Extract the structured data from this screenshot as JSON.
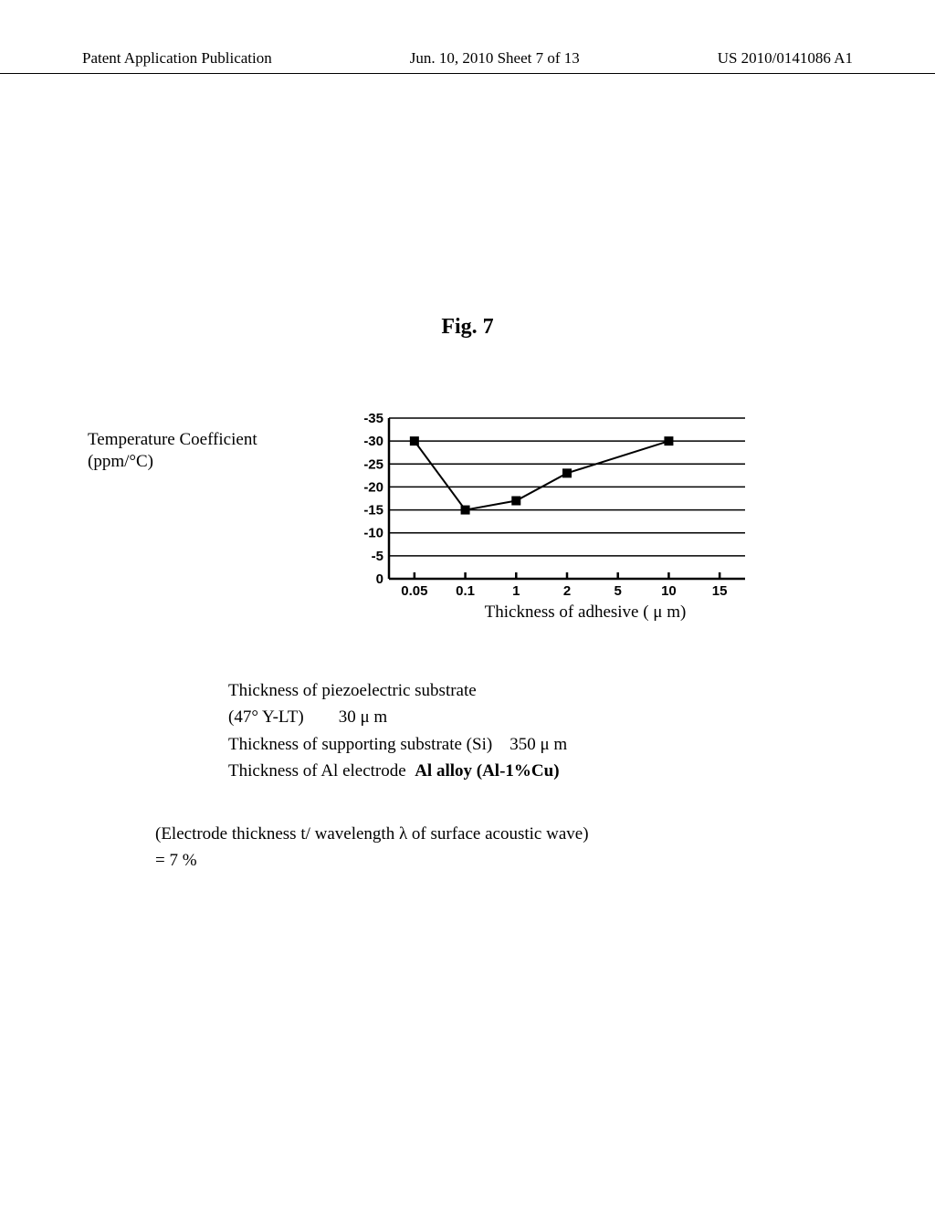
{
  "header": {
    "left": "Patent Application Publication",
    "mid": "Jun. 10, 2010  Sheet 7 of 13",
    "right": "US 2010/0141086 A1"
  },
  "figure": {
    "title": "Fig. 7",
    "ylabel_line1": "Temperature Coefficient",
    "ylabel_line2": "(ppm/°C)",
    "xlabel": "Thickness of adhesive ( μ m)",
    "chart": {
      "type": "line",
      "x_categories": [
        "0.05",
        "0.1",
        "1",
        "2",
        "5",
        "10",
        "15"
      ],
      "y_ticks": [
        0,
        -5,
        -10,
        -15,
        -20,
        -25,
        -30,
        -35
      ],
      "ylim": [
        0,
        -35
      ],
      "values": [
        -30,
        -15,
        -17,
        -23,
        -30
      ],
      "value_x_indices": [
        0,
        1,
        2,
        3,
        5
      ],
      "marker": "square",
      "marker_size": 10,
      "marker_color": "#000000",
      "line_color": "#000000",
      "line_width": 2,
      "grid_color": "#000000",
      "grid_width": 1.5,
      "axis_color": "#000000",
      "axis_width": 2.5,
      "background_color": "#ffffff",
      "tick_fontsize": 15,
      "label_fontsize": 19
    }
  },
  "caption": {
    "line1": "Thickness of piezoelectric substrate",
    "line2a": "(47°  Y-LT)",
    "line2b": "30  μ m",
    "line3a": "Thickness of supporting substrate (Si)",
    "line3b": "350 μ m",
    "line4a": "Thickness of Al electrode",
    "line4b": "Al alloy (Al-1%Cu)"
  },
  "caption2": {
    "line1": "(Electrode thickness t/ wavelength  λ  of surface acoustic wave)",
    "line2": "= 7  %"
  }
}
